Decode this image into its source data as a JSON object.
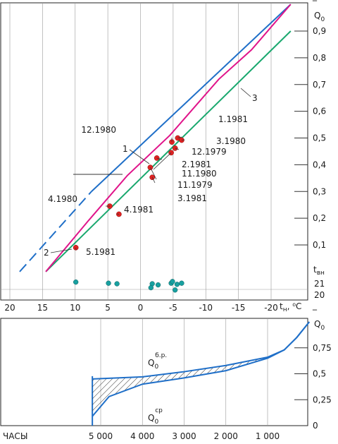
{
  "chart_data": [
    {
      "type": "line",
      "x_axis": {
        "label": "tн, °C",
        "lim": [
          20,
          -23
        ],
        "ticks": [
          "20",
          "15",
          "10",
          "5",
          "0",
          "-5",
          "-10",
          "-15",
          "-20"
        ],
        "tick_values": [
          20,
          15,
          10,
          5,
          0,
          -5,
          -10,
          -15,
          -20
        ]
      },
      "y_axis": {
        "label": "Q̄0",
        "lim": [
          -0.14,
          1.0
        ],
        "ticks": [
          "0,1",
          "0,2",
          "0,3",
          "0,4",
          "0,5",
          "0,6",
          "0,7",
          "0,8",
          "0,9"
        ],
        "tick_values": [
          0.1,
          0.2,
          0.3,
          0.4,
          0.5,
          0.6,
          0.7,
          0.8,
          0.9
        ]
      },
      "secondary_y_axis": {
        "label": "tвн",
        "ticks": [
          "21",
          "20"
        ],
        "tick_values": [
          21,
          20
        ]
      },
      "series": [
        {
          "name": "1",
          "color": "#e0148a",
          "x": [
            14.5,
            8,
            2,
            -4.5,
            -7,
            -12,
            -17,
            -23
          ],
          "y": [
            0.0,
            0.19,
            0.36,
            0.51,
            0.58,
            0.72,
            0.83,
            1.0
          ]
        },
        {
          "name": "2",
          "color": "#1f6fc8",
          "x": [
            14.5,
            -23
          ],
          "y": [
            0.0,
            1.0
          ]
        },
        {
          "name": "2-dashed",
          "color": "#1f6fc8",
          "x": [
            18.5,
            14.5
          ],
          "y": [
            0.0,
            0.0
          ]
        },
        {
          "name": "3",
          "color": "#19a86e",
          "x": [
            14.5,
            -23
          ],
          "y": [
            0.0,
            0.9
          ]
        }
      ],
      "extrapolation_segments": [
        {
          "series": "2",
          "x1": 18.5,
          "y1": 0.0,
          "x2": 14.5,
          "y2": 0.11,
          "style": "dashed"
        },
        {
          "series": "2",
          "x1": 14.5,
          "y1": 0.11,
          "x2": 7.5,
          "y2": 0.3,
          "style": "dashed"
        },
        {
          "series": "2",
          "x1": 7.5,
          "y1": 0.3,
          "x2": -23,
          "y2": 1.0,
          "style": "solid"
        }
      ],
      "points": [
        {
          "label": "12.1980",
          "x": -4.8,
          "y": 0.485
        },
        {
          "label": "1.1981",
          "x": -5.7,
          "y": 0.5
        },
        {
          "label": "3.1980",
          "x": -6.3,
          "y": 0.492
        },
        {
          "label": "12.1979",
          "x": -5.3,
          "y": 0.462
        },
        {
          "label": "2.1981",
          "x": -2.5,
          "y": 0.425
        },
        {
          "label": "11.1980",
          "x": -4.7,
          "y": 0.445
        },
        {
          "label": "11.1979",
          "x": -1.5,
          "y": 0.39
        },
        {
          "label": "3.1981",
          "x": -1.8,
          "y": 0.353
        },
        {
          "label": "4.1980",
          "x": 4.7,
          "y": 0.245
        },
        {
          "label": "4.1981",
          "x": 3.3,
          "y": 0.215
        },
        {
          "label": "5.1981",
          "x": 9.9,
          "y": 0.09
        }
      ],
      "indoor_points": [
        {
          "x": 9.9,
          "t": 21.15
        },
        {
          "x": 4.9,
          "t": 21.05
        },
        {
          "x": 3.6,
          "t": 21.0
        },
        {
          "x": -1.8,
          "t": 21.0
        },
        {
          "x": -2.7,
          "t": 20.9
        },
        {
          "x": -1.6,
          "t": 20.65
        },
        {
          "x": -4.7,
          "t": 21.05
        },
        {
          "x": -4.9,
          "t": 21.2
        },
        {
          "x": -5.6,
          "t": 20.95
        },
        {
          "x": -6.3,
          "t": 21.05
        },
        {
          "x": -5.3,
          "t": 20.45
        }
      ],
      "annotations": [
        "1",
        "2",
        "3"
      ]
    },
    {
      "type": "area",
      "x_axis": {
        "label": "ЧАСЫ",
        "lim": [
          7700,
          0
        ],
        "ticks": [
          "5 000",
          "4 000",
          "3 000",
          "2 000",
          "1 000"
        ],
        "tick_values": [
          5000,
          4000,
          3000,
          2000,
          1000
        ]
      },
      "y_axis": {
        "label": "Q̄0",
        "lim": [
          0,
          1.0
        ],
        "ticks": [
          "0,25",
          "0,5",
          "0,75"
        ],
        "tick_values": [
          0.25,
          0.5,
          0.75
        ]
      },
      "series": [
        {
          "name": "Q0 б.р.",
          "color": "#1f6fc8",
          "x": [
            5200,
            4000,
            3000,
            2000,
            1000,
            600,
            300,
            0
          ],
          "y": [
            0.45,
            0.47,
            0.52,
            0.58,
            0.66,
            0.73,
            0.85,
            1.0
          ]
        },
        {
          "name": "Q0 ср",
          "color": "#1f6fc8",
          "x": [
            5200,
            4800,
            4000,
            3000,
            2000,
            1000,
            600,
            300,
            0
          ],
          "y": [
            0.09,
            0.28,
            0.4,
            0.46,
            0.53,
            0.65,
            0.73,
            0.85,
            1.0
          ]
        }
      ],
      "hatched_region": "between Q0 б.р. and Q0 ср"
    }
  ],
  "labels": {
    "top_ylabel": "Q",
    "top_ylabel_sub": "0",
    "top_ylabel_bar": "‾",
    "tvn": "t",
    "tvn_sub": "вн",
    "xlabel_t": "t",
    "xlabel_sub": "н",
    "xlabel_unit": ", ⁰C",
    "bottom_xlabel": "ЧАСЫ",
    "bottom_ylabel": "Q",
    "bottom_ylabel_sub": "0",
    "q_br_main": "Q",
    "q_br_sub": "0",
    "q_br_sup": "б.р.",
    "q_sr_main": "Q",
    "q_sr_sub": "0",
    "q_sr_sup": "ср"
  }
}
